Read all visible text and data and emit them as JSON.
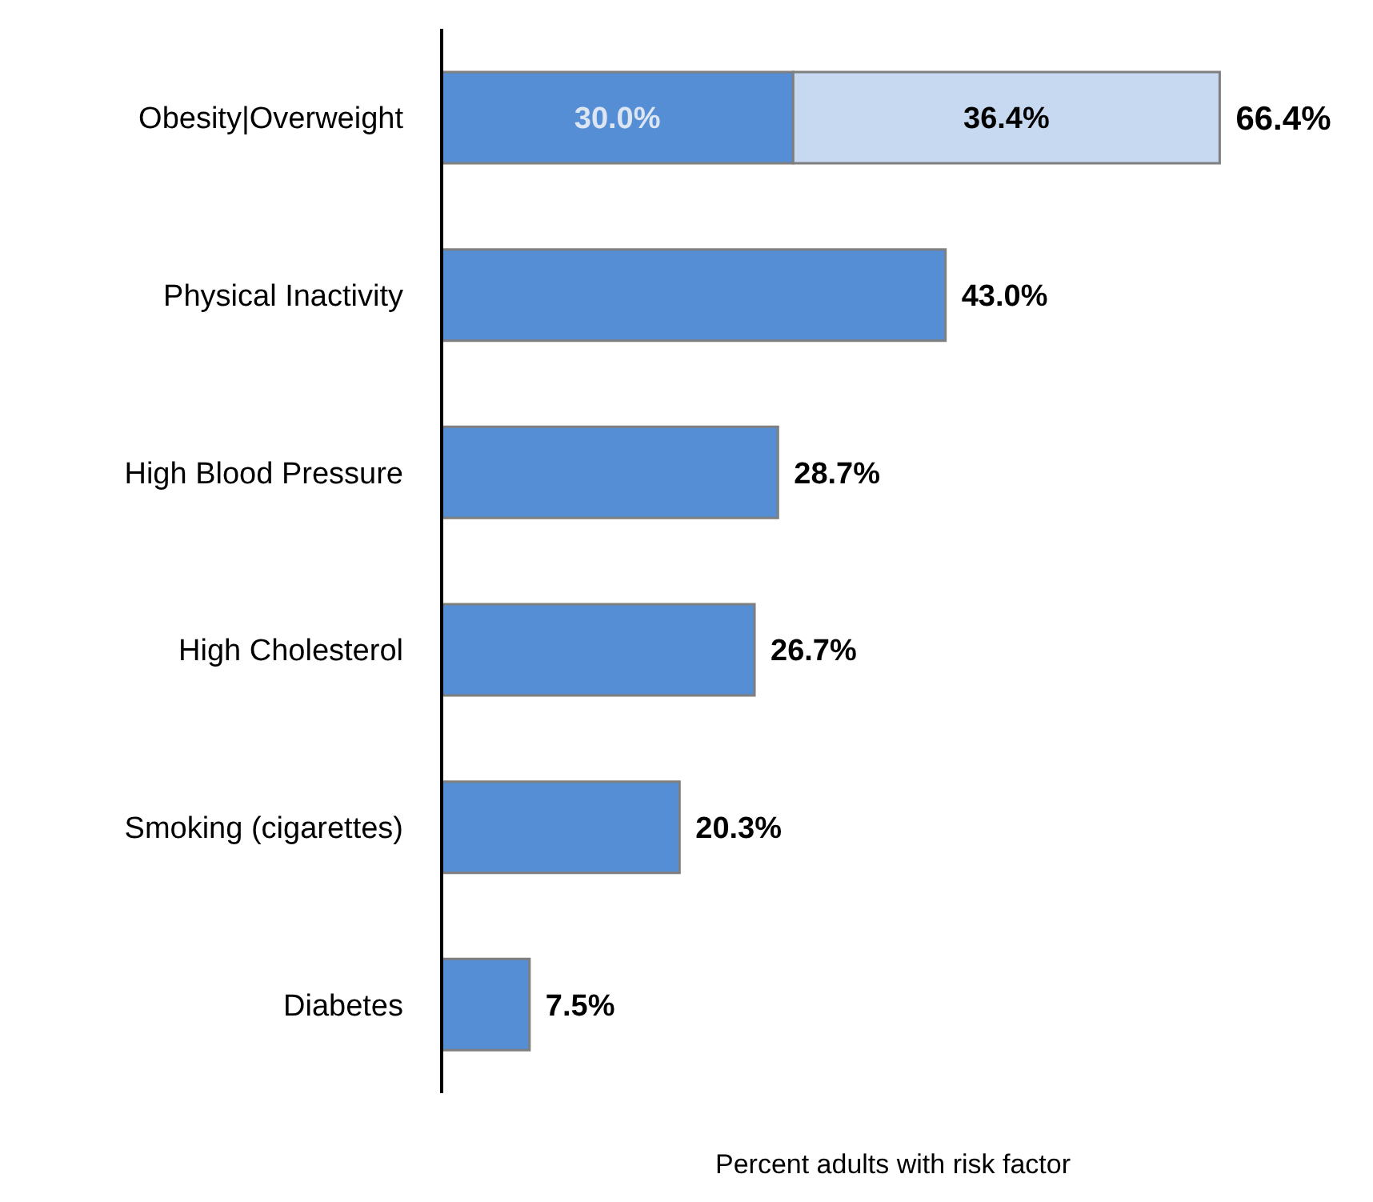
{
  "chart_data": {
    "type": "bar",
    "orientation": "horizontal",
    "stacked": true,
    "xlabel": "Percent adults with risk factor",
    "categories": [
      "Obesity|Overweight",
      "Physical Inactivity",
      "High Blood Pressure",
      "High Cholesterol",
      "Smoking (cigarettes)",
      "Diabetes"
    ],
    "series": [
      {
        "color": "#558ed5",
        "values": [
          30.0,
          43.0,
          28.7,
          26.7,
          20.3,
          7.5
        ],
        "value_labels": [
          "30.0%",
          "43.0%",
          "28.7%",
          "26.7%",
          "20.3%",
          "7.5%"
        ]
      },
      {
        "color": "#c6d9f1",
        "values": [
          36.4,
          null,
          null,
          null,
          null,
          null
        ],
        "value_labels": [
          "36.4%",
          null,
          null,
          null,
          null,
          null
        ]
      }
    ],
    "totals": [
      "66.4%",
      null,
      null,
      null,
      null,
      null
    ]
  }
}
